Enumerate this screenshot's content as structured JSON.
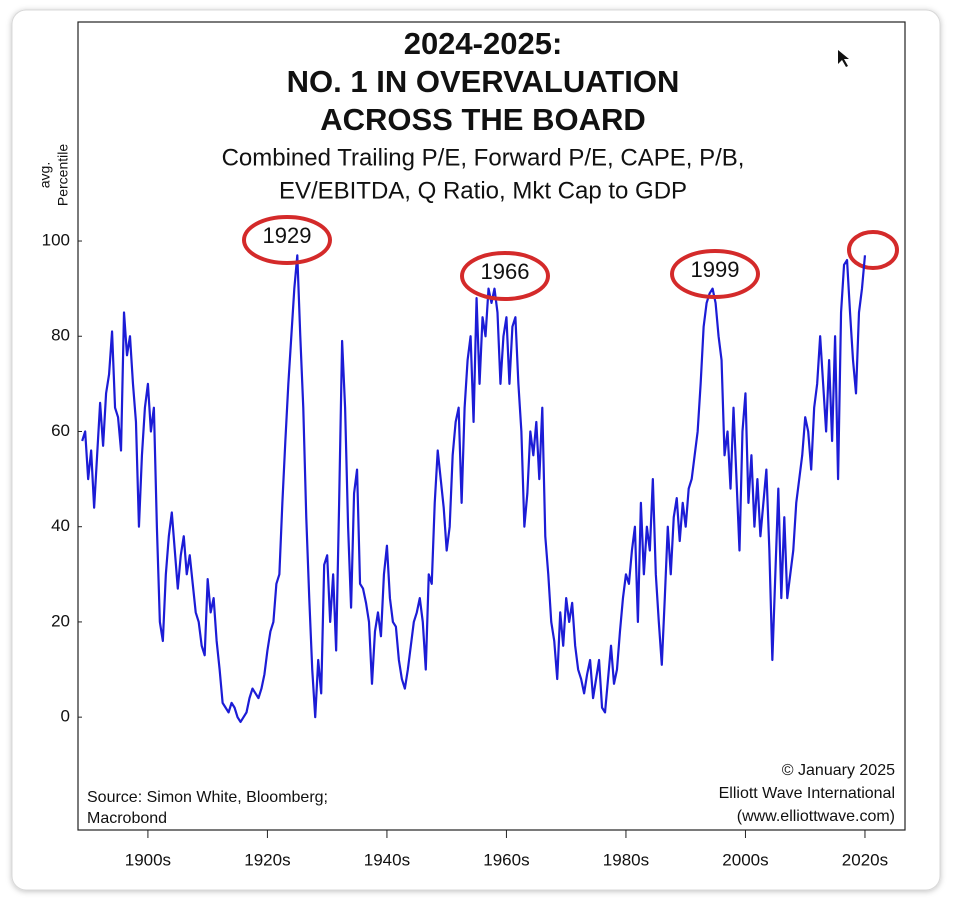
{
  "chart_data": {
    "type": "line",
    "title": [
      "2024-2025:",
      "NO. 1 IN OVERVALUATION",
      "ACROSS THE BOARD"
    ],
    "subtitle": [
      "Combined Trailing P/E, Forward P/E, CAPE, P/B,",
      "EV/EBITDA, Q Ratio, Mkt Cap to GDP"
    ],
    "y_label": [
      "avg.",
      "Percentile"
    ],
    "annotations": [
      "1929",
      "1966",
      "1999"
    ],
    "source": [
      "Source: Simon White, Bloomberg;",
      "Macrobond"
    ],
    "credit": [
      "© January 2025",
      "Elliott Wave International",
      "(www.elliottwave.com)"
    ],
    "color": "#1c1cd6",
    "grid": false,
    "xlim": [
      1893.3,
      2031.7
    ],
    "ylim": [
      -23.7,
      146
    ],
    "yticks": [
      0,
      20,
      40,
      60,
      80,
      100
    ],
    "xticks": [
      {
        "value": 1905,
        "label": "1900s"
      },
      {
        "value": 1925,
        "label": "1920s"
      },
      {
        "value": 1945,
        "label": "1940s"
      },
      {
        "value": 1965,
        "label": "1960s"
      },
      {
        "value": 1985,
        "label": "1980s"
      },
      {
        "value": 2005,
        "label": "2000s"
      },
      {
        "value": 2025,
        "label": "2020s"
      }
    ],
    "x": [
      1894,
      1894.5,
      1895,
      1895.5,
      1896,
      1896.5,
      1897,
      1897.5,
      1898,
      1898.5,
      1899,
      1899.5,
      1900,
      1900.5,
      1901,
      1901.5,
      1902,
      1902.5,
      1903,
      1903.5,
      1904,
      1904.5,
      1905,
      1905.5,
      1906,
      1906.5,
      1907,
      1907.5,
      1908,
      1908.5,
      1909,
      1909.5,
      1910,
      1910.5,
      1911,
      1911.5,
      1912,
      1912.5,
      1913,
      1913.5,
      1914,
      1914.5,
      1915,
      1915.5,
      1916,
      1916.5,
      1917,
      1917.5,
      1918,
      1918.5,
      1919,
      1919.5,
      1920,
      1920.5,
      1921,
      1921.5,
      1922,
      1922.5,
      1923,
      1923.5,
      1924,
      1924.5,
      1925,
      1925.5,
      1926,
      1926.5,
      1927,
      1927.5,
      1928,
      1928.5,
      1929,
      1929.5,
      1930,
      1930.5,
      1931,
      1931.5,
      1932,
      1932.5,
      1933,
      1933.5,
      1934,
      1934.5,
      1935,
      1935.5,
      1936,
      1936.5,
      1937,
      1937.5,
      1938,
      1938.5,
      1939,
      1939.5,
      1940,
      1940.5,
      1941,
      1941.5,
      1942,
      1942.5,
      1943,
      1943.5,
      1944,
      1944.5,
      1945,
      1945.5,
      1946,
      1946.5,
      1947,
      1947.5,
      1948,
      1948.5,
      1949,
      1949.5,
      1950,
      1950.5,
      1951,
      1951.5,
      1952,
      1952.5,
      1953,
      1953.5,
      1954,
      1954.5,
      1955,
      1955.5,
      1956,
      1956.5,
      1957,
      1957.5,
      1958,
      1958.5,
      1959,
      1959.5,
      1960,
      1960.5,
      1961,
      1961.5,
      1962,
      1962.5,
      1963,
      1963.5,
      1964,
      1964.5,
      1965,
      1965.5,
      1966,
      1966.5,
      1967,
      1967.5,
      1968,
      1968.5,
      1969,
      1969.5,
      1970,
      1970.5,
      1971,
      1971.5,
      1972,
      1972.5,
      1973,
      1973.5,
      1974,
      1974.5,
      1975,
      1975.5,
      1976,
      1976.5,
      1977,
      1977.5,
      1978,
      1978.5,
      1979,
      1979.5,
      1980,
      1980.5,
      1981,
      1981.5,
      1982,
      1982.5,
      1983,
      1983.5,
      1984,
      1984.5,
      1985,
      1985.5,
      1986,
      1986.5,
      1987,
      1987.5,
      1988,
      1988.5,
      1989,
      1989.5,
      1990,
      1990.5,
      1991,
      1991.5,
      1992,
      1992.5,
      1993,
      1993.5,
      1994,
      1994.5,
      1995,
      1995.5,
      1996,
      1996.5,
      1997,
      1997.5,
      1998,
      1998.5,
      1999,
      1999.5,
      2000,
      2000.5,
      2001,
      2001.5,
      2002,
      2002.5,
      2003,
      2003.5,
      2004,
      2004.5,
      2005,
      2005.5,
      2006,
      2006.5,
      2007,
      2007.5,
      2008,
      2008.5,
      2009,
      2009.5,
      2010,
      2010.5,
      2011,
      2011.5,
      2012,
      2012.5,
      2013,
      2013.5,
      2014,
      2014.5,
      2015,
      2015.5,
      2016,
      2016.5,
      2017,
      2017.5,
      2018,
      2018.5,
      2019,
      2019.5,
      2020,
      2020.5,
      2021,
      2021.5,
      2022,
      2022.5,
      2023,
      2023.5,
      2024,
      2024.5,
      2025
    ],
    "values": [
      58,
      60,
      50,
      56,
      44,
      55,
      66,
      57,
      68,
      72,
      81,
      65,
      63,
      56,
      85,
      76,
      80,
      70,
      62,
      40,
      55,
      65,
      70,
      60,
      65,
      40,
      20,
      16,
      30,
      38,
      43,
      35,
      27,
      34,
      38,
      30,
      34,
      28,
      22,
      20,
      15,
      13,
      29,
      22,
      25,
      16,
      10,
      3,
      2,
      1,
      3,
      2,
      0,
      -1,
      0,
      1,
      4,
      6,
      5,
      4,
      6,
      9,
      14,
      18,
      20,
      28,
      30,
      45,
      58,
      70,
      80,
      90,
      97,
      80,
      65,
      42,
      25,
      10,
      0,
      12,
      5,
      32,
      34,
      20,
      30,
      14,
      45,
      79,
      65,
      40,
      23,
      47,
      52,
      28,
      27,
      24,
      20,
      7,
      18,
      22,
      17,
      30,
      36,
      25,
      20,
      19,
      12,
      8,
      6,
      10,
      15,
      20,
      22,
      25,
      20,
      10,
      30,
      28,
      45,
      56,
      50,
      44,
      35,
      40,
      55,
      62,
      65,
      45,
      65,
      75,
      80,
      62,
      88,
      70,
      84,
      80,
      90,
      87,
      90,
      85,
      70,
      80,
      84,
      70,
      82,
      84,
      70,
      60,
      40,
      47,
      60,
      55,
      62,
      50,
      65,
      38,
      30,
      20,
      16,
      8,
      22,
      15,
      25,
      20,
      24,
      15,
      10,
      8,
      5,
      9,
      12,
      4,
      8,
      12,
      2,
      1,
      8,
      15,
      7,
      10,
      18,
      25,
      30,
      28,
      35,
      40,
      20,
      45,
      30,
      40,
      35,
      50,
      30,
      20,
      11,
      25,
      40,
      30,
      42,
      46,
      37,
      45,
      40,
      48,
      50,
      55,
      60,
      70,
      82,
      87,
      89,
      90,
      87,
      80,
      75,
      55,
      60,
      48,
      65,
      50,
      35,
      60,
      68,
      45,
      55,
      40,
      50,
      38,
      45,
      52,
      35,
      12,
      30,
      48,
      25,
      42,
      25,
      30,
      35,
      45,
      50,
      55,
      63,
      60,
      52,
      65,
      70,
      80,
      70,
      60,
      75,
      58,
      80,
      50,
      85,
      95,
      96,
      85,
      75,
      68,
      85,
      90,
      97
    ]
  }
}
